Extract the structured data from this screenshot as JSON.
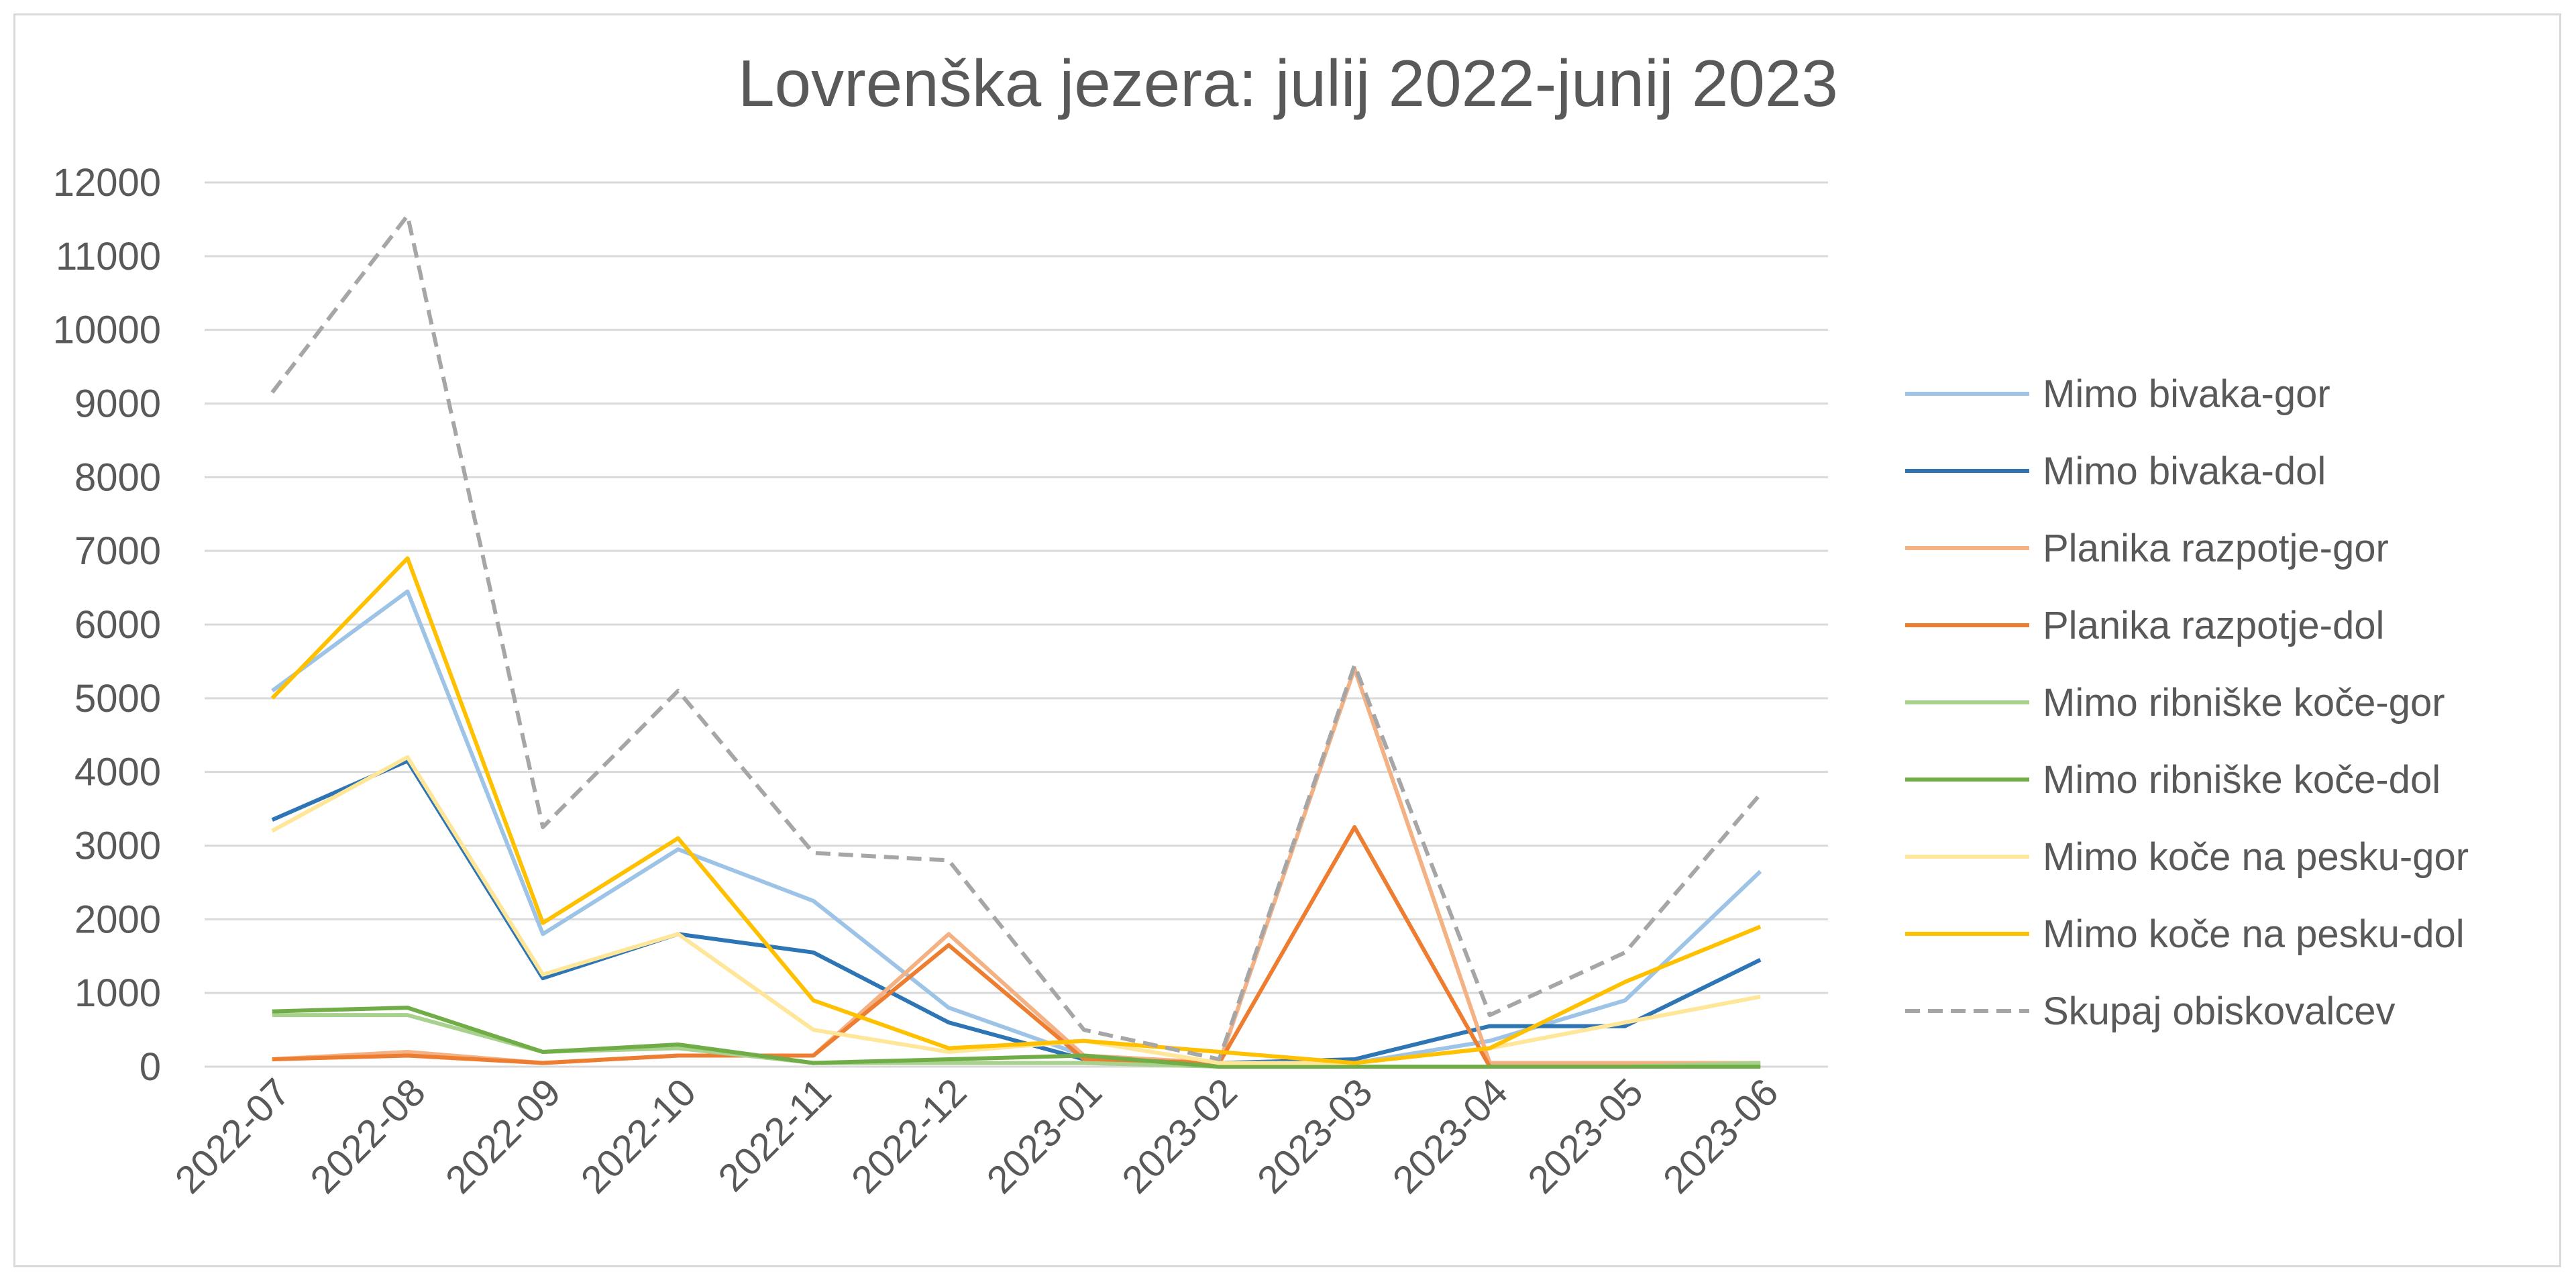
{
  "chart_data": {
    "type": "line",
    "title": "Lovrenška jezera: julij 2022-junij 2023",
    "xlabel": "",
    "ylabel": "",
    "ylim": [
      0,
      12000
    ],
    "yticks": [
      0,
      1000,
      2000,
      3000,
      4000,
      5000,
      6000,
      7000,
      8000,
      9000,
      10000,
      11000,
      12000
    ],
    "grid": true,
    "legend_position": "right",
    "categories": [
      "2022-07",
      "2022-08",
      "2022-09",
      "2022-10",
      "2022-11",
      "2022-12",
      "2023-01",
      "2023-02",
      "2023-03",
      "2023-04",
      "2023-05",
      "2023-06"
    ],
    "series": [
      {
        "name": "Mimo bivaka-gor",
        "color": "#9dc3e6",
        "dash": "solid",
        "values": [
          5100,
          6450,
          1800,
          2950,
          2250,
          800,
          150,
          50,
          50,
          350,
          900,
          2650
        ]
      },
      {
        "name": "Mimo bivaka-dol",
        "color": "#2e75b6",
        "dash": "solid",
        "values": [
          3350,
          4150,
          1200,
          1800,
          1550,
          600,
          100,
          50,
          100,
          550,
          550,
          1450
        ]
      },
      {
        "name": "Planika razpotje-gor",
        "color": "#f4b183",
        "dash": "solid",
        "values": [
          100,
          200,
          50,
          150,
          150,
          1800,
          150,
          50,
          5400,
          50,
          50,
          50
        ]
      },
      {
        "name": "Planika razpotje-dol",
        "color": "#ed7d31",
        "dash": "solid",
        "values": [
          100,
          150,
          50,
          150,
          150,
          1650,
          100,
          50,
          3250,
          0,
          0,
          0
        ]
      },
      {
        "name": "Mimo ribniške koče-gor",
        "color": "#a9d18e",
        "dash": "solid",
        "values": [
          700,
          700,
          200,
          250,
          50,
          50,
          50,
          0,
          0,
          0,
          0,
          50
        ]
      },
      {
        "name": "Mimo ribniške koče-dol",
        "color": "#70ad47",
        "dash": "solid",
        "values": [
          750,
          800,
          200,
          300,
          50,
          100,
          150,
          0,
          0,
          0,
          0,
          0
        ]
      },
      {
        "name": "Mimo koče na pesku-gor",
        "color": "#ffe699",
        "dash": "solid",
        "values": [
          3200,
          4200,
          1250,
          1800,
          500,
          200,
          350,
          50,
          50,
          250,
          600,
          950
        ]
      },
      {
        "name": "Mimo koče na pesku-dol",
        "color": "#ffc000",
        "dash": "solid",
        "values": [
          5000,
          6900,
          1950,
          3100,
          900,
          250,
          350,
          200,
          50,
          250,
          1150,
          1900
        ]
      },
      {
        "name": "Skupaj obiskovalcev",
        "color": "#a6a6a6",
        "dash": "dashed",
        "values": [
          9150,
          11550,
          3250,
          5100,
          2900,
          2800,
          500,
          100,
          5450,
          700,
          1550,
          3700
        ]
      }
    ]
  }
}
